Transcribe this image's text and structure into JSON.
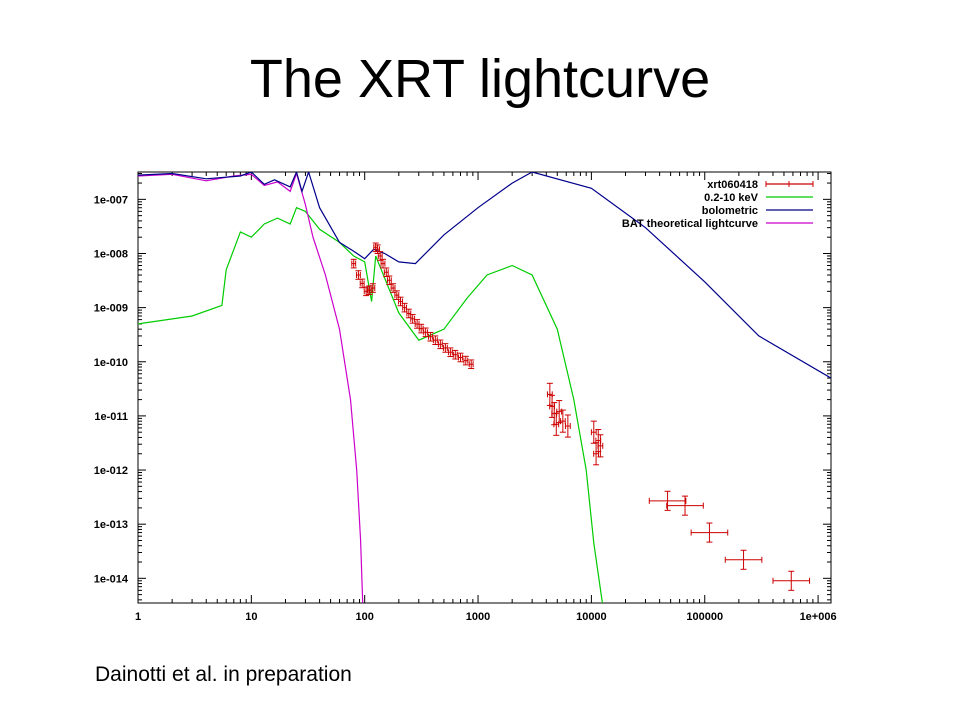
{
  "slide": {
    "title": "The XRT lightcurve",
    "caption": "Dainotti et al. in preparation"
  },
  "chart_data": {
    "type": "line",
    "title": "",
    "xlabel": "",
    "ylabel": "",
    "xscale": "log",
    "yscale": "log",
    "xlim": [
      1,
      1300000
    ],
    "ylim": [
      3.5e-15,
      3.2e-07
    ],
    "x_ticks": [
      {
        "value": 1,
        "label": "1"
      },
      {
        "value": 10,
        "label": "10"
      },
      {
        "value": 100,
        "label": "100"
      },
      {
        "value": 1000,
        "label": "1000"
      },
      {
        "value": 10000,
        "label": "10000"
      },
      {
        "value": 100000,
        "label": "100000"
      },
      {
        "value": 1000000,
        "label": "1e+006"
      }
    ],
    "y_ticks": [
      {
        "value": 1e-14,
        "label": "1e-014"
      },
      {
        "value": 1e-13,
        "label": "1e-013"
      },
      {
        "value": 1e-12,
        "label": "1e-012"
      },
      {
        "value": 1e-11,
        "label": "1e-011"
      },
      {
        "value": 1e-10,
        "label": "1e-010"
      },
      {
        "value": 1e-09,
        "label": "1e-009"
      },
      {
        "value": 1e-08,
        "label": "1e-008"
      },
      {
        "value": 1e-07,
        "label": "1e-007"
      }
    ],
    "grid": false,
    "legend_position": "top-right",
    "series": [
      {
        "name": "xrt060418",
        "kind": "errorbar",
        "color": "#cc0000",
        "points": [
          {
            "x": 80,
            "y": 6.5e-09
          },
          {
            "x": 88,
            "y": 4e-09
          },
          {
            "x": 95,
            "y": 2.8e-09
          },
          {
            "x": 103,
            "y": 2e-09
          },
          {
            "x": 110,
            "y": 2.1e-09
          },
          {
            "x": 118,
            "y": 2.3e-09
          },
          {
            "x": 125,
            "y": 1.3e-08
          },
          {
            "x": 130,
            "y": 1.2e-08
          },
          {
            "x": 137,
            "y": 9e-09
          },
          {
            "x": 145,
            "y": 6.5e-09
          },
          {
            "x": 155,
            "y": 4.5e-09
          },
          {
            "x": 165,
            "y": 3.2e-09
          },
          {
            "x": 178,
            "y": 2.3e-09
          },
          {
            "x": 192,
            "y": 1.7e-09
          },
          {
            "x": 207,
            "y": 1.3e-09
          },
          {
            "x": 225,
            "y": 1e-09
          },
          {
            "x": 245,
            "y": 7.8e-10
          },
          {
            "x": 265,
            "y": 6.2e-10
          },
          {
            "x": 290,
            "y": 5e-10
          },
          {
            "x": 315,
            "y": 4.1e-10
          },
          {
            "x": 345,
            "y": 3.5e-10
          },
          {
            "x": 380,
            "y": 2.9e-10
          },
          {
            "x": 420,
            "y": 2.5e-10
          },
          {
            "x": 465,
            "y": 2.1e-10
          },
          {
            "x": 515,
            "y": 1.8e-10
          },
          {
            "x": 570,
            "y": 1.5e-10
          },
          {
            "x": 630,
            "y": 1.35e-10
          },
          {
            "x": 700,
            "y": 1.2e-10
          },
          {
            "x": 780,
            "y": 1.05e-10
          },
          {
            "x": 870,
            "y": 9e-11
          },
          {
            "x": 4300,
            "y": 2.5e-11
          },
          {
            "x": 4500,
            "y": 1.5e-11
          },
          {
            "x": 4700,
            "y": 1.1e-11
          },
          {
            "x": 4900,
            "y": 7e-12
          },
          {
            "x": 5200,
            "y": 1.2e-11
          },
          {
            "x": 5600,
            "y": 8e-12
          },
          {
            "x": 6200,
            "y": 6.5e-12
          },
          {
            "x": 10500,
            "y": 5e-12
          },
          {
            "x": 11000,
            "y": 2e-12
          },
          {
            "x": 11500,
            "y": 3.5e-12
          },
          {
            "x": 12000,
            "y": 2.8e-12
          },
          {
            "x": 47000,
            "y": 2.7e-13
          },
          {
            "x": 67000,
            "y": 2.2e-13
          },
          {
            "x": 110000,
            "y": 7e-14
          },
          {
            "x": 220000,
            "y": 2.2e-14
          },
          {
            "x": 580000,
            "y": 9e-15
          }
        ]
      },
      {
        "name": "0.2-10 keV",
        "kind": "line",
        "color": "#00cc00",
        "points": [
          {
            "x": 1,
            "y": 5e-10
          },
          {
            "x": 3,
            "y": 7e-10
          },
          {
            "x": 5.5,
            "y": 1.1e-09
          },
          {
            "x": 6,
            "y": 5e-09
          },
          {
            "x": 8,
            "y": 2.5e-08
          },
          {
            "x": 10,
            "y": 2e-08
          },
          {
            "x": 13,
            "y": 3.5e-08
          },
          {
            "x": 17,
            "y": 4.5e-08
          },
          {
            "x": 22,
            "y": 3.5e-08
          },
          {
            "x": 25,
            "y": 7e-08
          },
          {
            "x": 30,
            "y": 6e-08
          },
          {
            "x": 40,
            "y": 2.8e-08
          },
          {
            "x": 60,
            "y": 1.6e-08
          },
          {
            "x": 80,
            "y": 9e-09
          },
          {
            "x": 100,
            "y": 7e-09
          },
          {
            "x": 115,
            "y": 1.3e-09
          },
          {
            "x": 125,
            "y": 9e-09
          },
          {
            "x": 140,
            "y": 5e-09
          },
          {
            "x": 200,
            "y": 8e-10
          },
          {
            "x": 300,
            "y": 2.5e-10
          },
          {
            "x": 500,
            "y": 4e-10
          },
          {
            "x": 800,
            "y": 1.5e-09
          },
          {
            "x": 1200,
            "y": 4e-09
          },
          {
            "x": 2000,
            "y": 6e-09
          },
          {
            "x": 3000,
            "y": 4e-09
          },
          {
            "x": 5000,
            "y": 4e-10
          },
          {
            "x": 7000,
            "y": 2e-11
          },
          {
            "x": 9000,
            "y": 1e-12
          },
          {
            "x": 10500,
            "y": 4.5e-14
          },
          {
            "x": 12500,
            "y": 3.5e-15
          }
        ]
      },
      {
        "name": "bolometric",
        "kind": "line",
        "color": "#00008b",
        "points": [
          {
            "x": 1,
            "y": 2.8e-07
          },
          {
            "x": 2,
            "y": 3e-07
          },
          {
            "x": 4,
            "y": 2.4e-07
          },
          {
            "x": 8,
            "y": 2.7e-07
          },
          {
            "x": 10,
            "y": 3.2e-07
          },
          {
            "x": 13,
            "y": 1.9e-07
          },
          {
            "x": 16,
            "y": 2.3e-07
          },
          {
            "x": 22,
            "y": 1.7e-07
          },
          {
            "x": 25,
            "y": 3.2e-07
          },
          {
            "x": 28,
            "y": 1.4e-07
          },
          {
            "x": 32,
            "y": 3.2e-07
          },
          {
            "x": 40,
            "y": 7e-08
          },
          {
            "x": 60,
            "y": 1.6e-08
          },
          {
            "x": 80,
            "y": 1.1e-08
          },
          {
            "x": 100,
            "y": 8e-09
          },
          {
            "x": 120,
            "y": 1.2e-08
          },
          {
            "x": 150,
            "y": 1e-08
          },
          {
            "x": 200,
            "y": 7e-09
          },
          {
            "x": 280,
            "y": 6.5e-09
          },
          {
            "x": 500,
            "y": 2.2e-08
          },
          {
            "x": 1000,
            "y": 7e-08
          },
          {
            "x": 2000,
            "y": 2e-07
          },
          {
            "x": 3000,
            "y": 3.2e-07
          },
          {
            "x": 10000,
            "y": 1.6e-07
          },
          {
            "x": 30000,
            "y": 3e-08
          },
          {
            "x": 100000,
            "y": 3e-09
          },
          {
            "x": 300000,
            "y": 3e-10
          },
          {
            "x": 1300000,
            "y": 5e-11
          }
        ]
      },
      {
        "name": "BAT theoretical lightcurve",
        "kind": "line",
        "color": "#cc00cc",
        "points": [
          {
            "x": 1,
            "y": 2.7e-07
          },
          {
            "x": 2,
            "y": 2.9e-07
          },
          {
            "x": 4,
            "y": 2.2e-07
          },
          {
            "x": 7,
            "y": 2.7e-07
          },
          {
            "x": 10,
            "y": 2.9e-07
          },
          {
            "x": 13,
            "y": 1.8e-07
          },
          {
            "x": 17,
            "y": 2.1e-07
          },
          {
            "x": 22,
            "y": 1.4e-07
          },
          {
            "x": 25,
            "y": 3e-07
          },
          {
            "x": 30,
            "y": 8e-08
          },
          {
            "x": 35,
            "y": 2e-08
          },
          {
            "x": 45,
            "y": 4e-09
          },
          {
            "x": 60,
            "y": 4e-10
          },
          {
            "x": 75,
            "y": 2e-11
          },
          {
            "x": 85,
            "y": 1e-12
          },
          {
            "x": 92,
            "y": 5e-14
          },
          {
            "x": 96,
            "y": 3.5e-15
          }
        ]
      }
    ]
  }
}
